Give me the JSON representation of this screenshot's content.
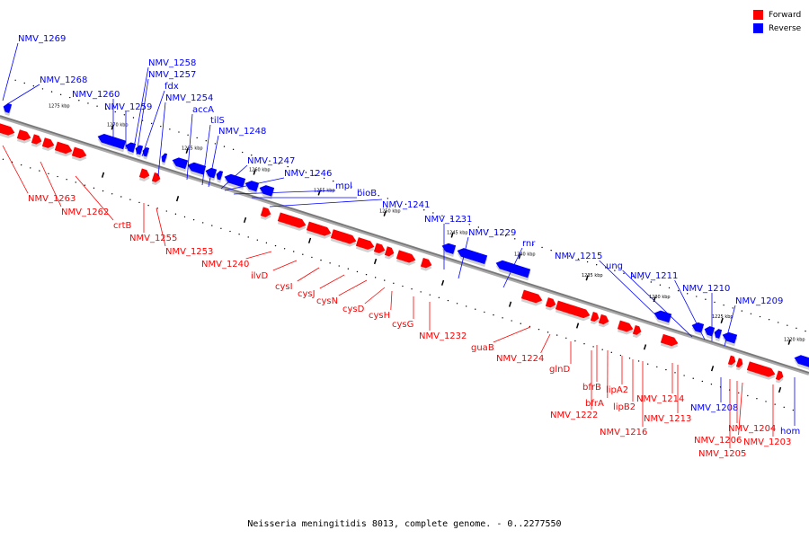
{
  "title": "Neisseria meningitidis 8013, complete genome. - 0..2277550",
  "legend": {
    "forward": {
      "label": "Forward",
      "color": "#ff0000"
    },
    "reverse": {
      "label": "Reverse",
      "color": "#0000ff"
    }
  },
  "colors": {
    "forward": "#ff0000",
    "reverse": "#0000ff",
    "backbone": "#777777"
  },
  "axis": {
    "unit": "kbp",
    "ticks": [
      {
        "value": 1275,
        "label": "1275 kbp"
      },
      {
        "value": 1270,
        "label": "1270 kbp"
      },
      {
        "value": 1265,
        "label": "1265 kbp"
      },
      {
        "value": 1260,
        "label": "1260 kbp"
      },
      {
        "value": 1255,
        "label": "1255 kbp"
      },
      {
        "value": 1250,
        "label": "1250 kbp"
      },
      {
        "value": 1245,
        "label": "1245 kbp"
      },
      {
        "value": 1240,
        "label": "1240 kbp"
      },
      {
        "value": 1235,
        "label": "1235 kbp"
      },
      {
        "value": 1230,
        "label": "1230 kbp"
      },
      {
        "value": 1225,
        "label": "1225 kbp"
      },
      {
        "value": 1220,
        "label": "1220 kbp"
      }
    ]
  },
  "reverse_genes": [
    "NMV_1269",
    "NMV_1268",
    "NMV_1260",
    "NMV_1259",
    "NMV_1258",
    "NMV_1257",
    "fdx",
    "NMV_1254",
    "accA",
    "tilS",
    "NMV_1248",
    "NMV_1247",
    "NMV_1246",
    "mpl",
    "bioB",
    "NMV_1241",
    "NMV_1231",
    "NMV_1229",
    "rnr",
    "NMV_1215",
    "ung",
    "NMV_1211",
    "NMV_1210",
    "NMV_1209",
    "NMV_1208",
    "hom"
  ],
  "forward_genes": [
    "NMV_1263",
    "NMV_1262",
    "crtB",
    "NMV_1255",
    "NMV_1253",
    "NMV_1240",
    "ilvD",
    "cysI",
    "cysJ",
    "cysN",
    "cysD",
    "cysH",
    "cysG",
    "NMV_1232",
    "guaB",
    "NMV_1224",
    "glnD",
    "bfrB",
    "bfrA",
    "NMV_1222",
    "lipA2",
    "lipB2",
    "NMV_1216",
    "NMV_1214",
    "NMV_1213",
    "NMV_1204",
    "NMV_1206",
    "NMV_1205",
    "NMV_1203"
  ]
}
